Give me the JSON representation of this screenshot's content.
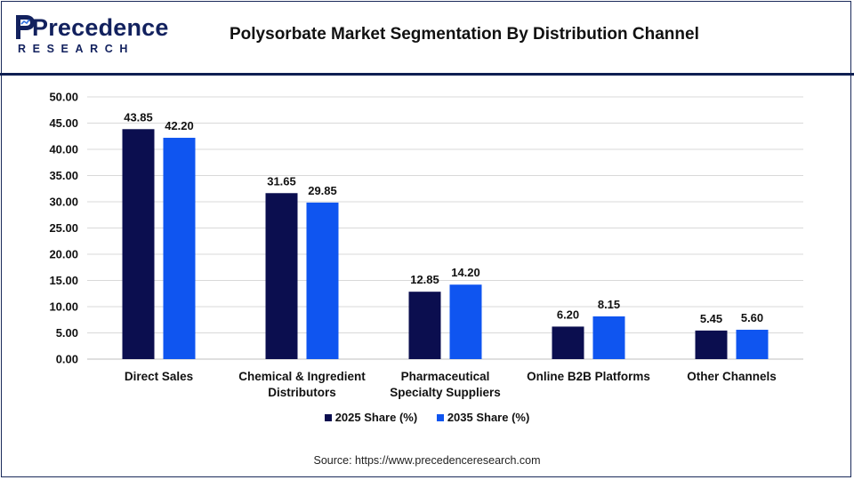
{
  "header": {
    "logo_word": "Precedence",
    "logo_sub": "RESEARCH",
    "title": "Polysorbate Market Segmentation By Distribution Channel"
  },
  "colors": {
    "series_2025": "#0b0e4f",
    "series_2035": "#0f55f0",
    "grid": "#d9d9d9",
    "brand": "#12215e"
  },
  "chart_data": {
    "type": "bar",
    "categories": [
      [
        "Direct Sales"
      ],
      [
        "Chemical & Ingredient",
        "Distributors"
      ],
      [
        "Pharmaceutical",
        "Specialty Suppliers"
      ],
      [
        "Online B2B Platforms"
      ],
      [
        "Other Channels"
      ]
    ],
    "series": [
      {
        "name": "2025 Share (%)",
        "values": [
          43.85,
          31.65,
          12.85,
          6.2,
          5.45
        ],
        "labels": [
          "43.85",
          "31.65",
          "12.85",
          "6.20",
          "5.45"
        ]
      },
      {
        "name": "2035 Share (%)",
        "values": [
          42.2,
          29.85,
          14.2,
          8.15,
          5.6
        ],
        "labels": [
          "42.20",
          "29.85",
          "14.20",
          "8.15",
          "5.60"
        ]
      }
    ],
    "ylim": [
      0,
      50
    ],
    "yticks": [
      "0.00",
      "5.00",
      "10.00",
      "15.00",
      "20.00",
      "25.00",
      "30.00",
      "35.00",
      "40.00",
      "45.00",
      "50.00"
    ],
    "grid": true,
    "legend_position": "bottom"
  },
  "source": "Source: https://www.precedenceresearch.com"
}
